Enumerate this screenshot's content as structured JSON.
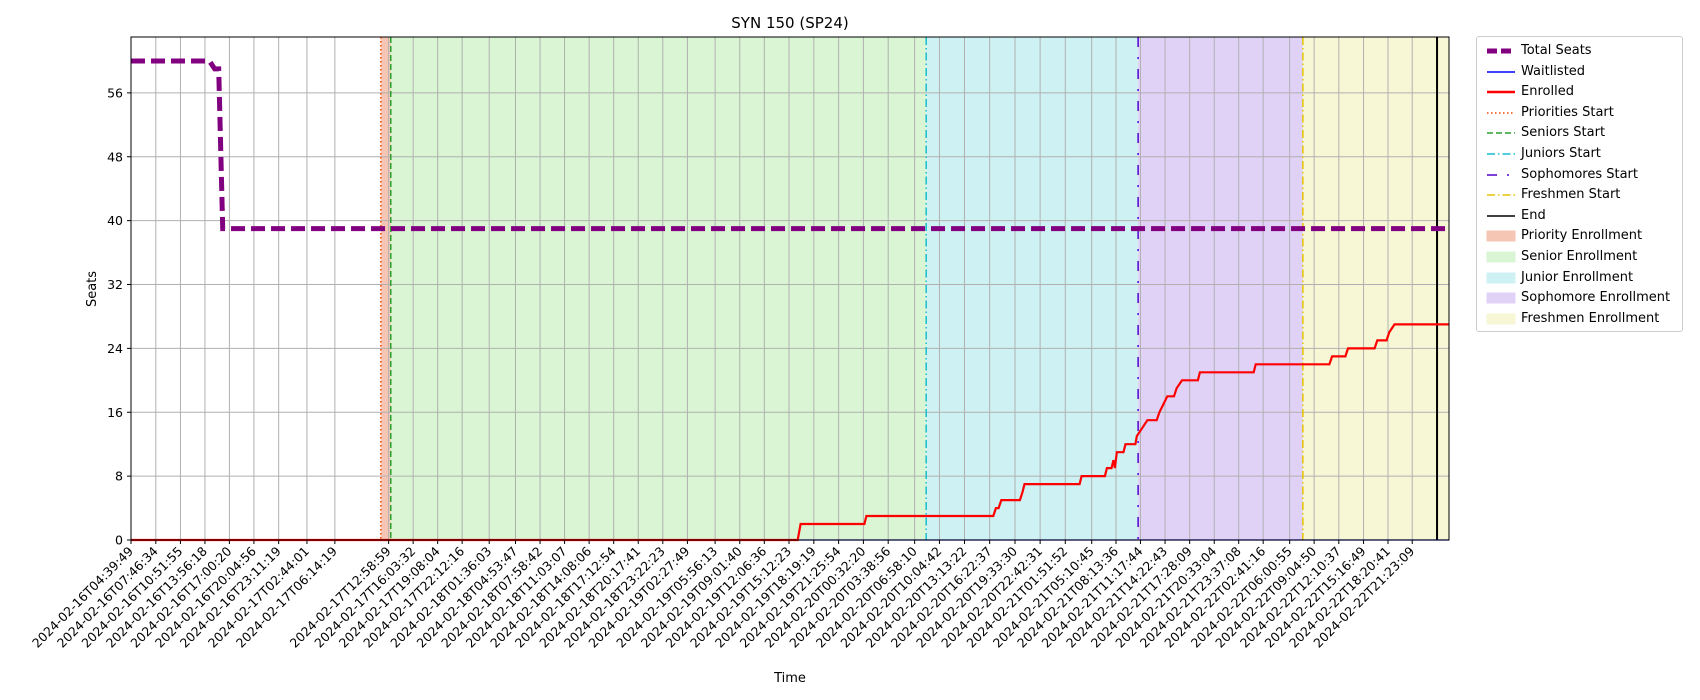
{
  "chart_data": {
    "type": "line",
    "title": "SYN 150 (SP24)",
    "xlabel": "Time",
    "ylabel": "Seats",
    "ylim": [
      0,
      63
    ],
    "yticks": [
      0,
      8,
      16,
      24,
      32,
      40,
      48,
      56
    ],
    "grid": true,
    "legend_position": "outside-right",
    "x_range": [
      "2024-02-16T04:39:49",
      "2024-02-23T02:00:00"
    ],
    "xticks": [
      "2024-02-16T04:39:49",
      "2024-02-16T07:46:34",
      "2024-02-16T10:51:55",
      "2024-02-16T13:56:18",
      "2024-02-16T17:00:20",
      "2024-02-16T20:04:56",
      "2024-02-16T23:11:19",
      "2024-02-17T02:44:01",
      "2024-02-17T06:14:19",
      "2024-02-17T12:58:59",
      "2024-02-17T16:03:32",
      "2024-02-17T19:08:04",
      "2024-02-17T22:12:16",
      "2024-02-18T01:36:03",
      "2024-02-18T04:53:47",
      "2024-02-18T07:58:42",
      "2024-02-18T11:03:07",
      "2024-02-18T14:08:06",
      "2024-02-18T17:12:54",
      "2024-02-18T20:17:41",
      "2024-02-18T23:22:23",
      "2024-02-19T02:27:49",
      "2024-02-19T05:56:13",
      "2024-02-19T09:01:40",
      "2024-02-19T12:06:36",
      "2024-02-19T15:12:23",
      "2024-02-19T18:19:19",
      "2024-02-19T21:25:54",
      "2024-02-20T00:32:20",
      "2024-02-20T03:38:56",
      "2024-02-20T06:58:10",
      "2024-02-20T10:04:42",
      "2024-02-20T13:13:22",
      "2024-02-20T16:22:37",
      "2024-02-20T19:33:30",
      "2024-02-20T22:42:31",
      "2024-02-21T01:51:52",
      "2024-02-21T05:10:45",
      "2024-02-21T08:13:36",
      "2024-02-21T11:17:44",
      "2024-02-21T14:22:43",
      "2024-02-21T17:28:09",
      "2024-02-21T20:33:04",
      "2024-02-21T23:37:08",
      "2024-02-22T02:41:16",
      "2024-02-22T06:00:55",
      "2024-02-22T09:04:50",
      "2024-02-22T12:10:37",
      "2024-02-22T15:16:49",
      "2024-02-22T18:20:41",
      "2024-02-22T21:23:09"
    ],
    "series": [
      {
        "name": "Total Seats",
        "color": "#800080",
        "style": "dashed",
        "points": [
          [
            "2024-02-16T04:39:49",
            60
          ],
          [
            "2024-02-16T14:30:00",
            60
          ],
          [
            "2024-02-16T15:10:00",
            59
          ],
          [
            "2024-02-16T15:40:00",
            59
          ],
          [
            "2024-02-16T16:10:00",
            39
          ],
          [
            "2024-02-23T02:00:00",
            39
          ]
        ]
      },
      {
        "name": "Waitlisted",
        "color": "#0000ff",
        "style": "solid",
        "points": [
          [
            "2024-02-16T04:39:49",
            0
          ],
          [
            "2024-02-23T02:00:00",
            0
          ]
        ]
      },
      {
        "name": "Enrolled",
        "color": "#ff0000",
        "style": "solid",
        "points": [
          [
            "2024-02-16T04:39:49",
            0
          ],
          [
            "2024-02-19T16:18:00",
            0
          ],
          [
            "2024-02-19T16:40:00",
            2
          ],
          [
            "2024-02-20T00:40:00",
            2
          ],
          [
            "2024-02-20T00:55:00",
            3
          ],
          [
            "2024-02-20T16:50:00",
            3
          ],
          [
            "2024-02-20T17:10:00",
            4
          ],
          [
            "2024-02-20T17:30:00",
            4
          ],
          [
            "2024-02-20T17:50:00",
            5
          ],
          [
            "2024-02-20T20:10:00",
            5
          ],
          [
            "2024-02-20T20:30:00",
            6
          ],
          [
            "2024-02-20T20:45:00",
            7
          ],
          [
            "2024-02-21T03:40:00",
            7
          ],
          [
            "2024-02-21T03:55:00",
            8
          ],
          [
            "2024-02-21T06:50:00",
            8
          ],
          [
            "2024-02-21T07:05:00",
            9
          ],
          [
            "2024-02-21T07:40:00",
            9
          ],
          [
            "2024-02-21T07:55:00",
            10
          ],
          [
            "2024-02-21T08:05:00",
            9
          ],
          [
            "2024-02-21T08:20:00",
            11
          ],
          [
            "2024-02-21T09:10:00",
            11
          ],
          [
            "2024-02-21T09:25:00",
            12
          ],
          [
            "2024-02-21T10:40:00",
            12
          ],
          [
            "2024-02-21T10:50:00",
            13
          ],
          [
            "2024-02-21T11:30:00",
            14
          ],
          [
            "2024-02-21T12:10:00",
            15
          ],
          [
            "2024-02-21T13:20:00",
            15
          ],
          [
            "2024-02-21T13:40:00",
            16
          ],
          [
            "2024-02-21T14:10:00",
            17
          ],
          [
            "2024-02-21T14:40:00",
            18
          ],
          [
            "2024-02-21T15:30:00",
            18
          ],
          [
            "2024-02-21T15:50:00",
            19
          ],
          [
            "2024-02-21T16:30:00",
            20
          ],
          [
            "2024-02-21T18:30:00",
            20
          ],
          [
            "2024-02-21T18:45:00",
            21
          ],
          [
            "2024-02-22T01:30:00",
            21
          ],
          [
            "2024-02-22T01:45:00",
            22
          ],
          [
            "2024-02-22T11:00:00",
            22
          ],
          [
            "2024-02-22T11:20:00",
            23
          ],
          [
            "2024-02-22T13:00:00",
            23
          ],
          [
            "2024-02-22T13:20:00",
            24
          ],
          [
            "2024-02-22T16:40:00",
            24
          ],
          [
            "2024-02-22T17:00:00",
            25
          ],
          [
            "2024-02-22T18:10:00",
            25
          ],
          [
            "2024-02-22T18:30:00",
            26
          ],
          [
            "2024-02-22T19:10:00",
            27
          ],
          [
            "2024-02-23T02:00:00",
            27
          ]
        ]
      }
    ],
    "vlines": [
      {
        "name": "Priorities Start",
        "x": "2024-02-17T12:00:00",
        "color": "#ff4500",
        "style": "dotted"
      },
      {
        "name": "Seniors Start",
        "x": "2024-02-17T13:15:00",
        "color": "#2ca02c",
        "style": "dashed"
      },
      {
        "name": "Juniors Start",
        "x": "2024-02-20T08:25:00",
        "color": "#17becf",
        "style": "dashdot"
      },
      {
        "name": "Sophomores Start",
        "x": "2024-02-21T11:00:00",
        "color": "#5500cc",
        "style": "loosedashdot"
      },
      {
        "name": "Freshmen Start",
        "x": "2024-02-22T07:40:00",
        "color": "#e6c200",
        "style": "dashdot"
      },
      {
        "name": "End",
        "x": "2024-02-23T00:30:00",
        "color": "#000000",
        "style": "solid"
      }
    ],
    "spans": [
      {
        "name": "Priority Enrollment",
        "start": "2024-02-17T12:00:00",
        "end": "2024-02-17T13:15:00",
        "color": "#f5c6b4"
      },
      {
        "name": "Senior Enrollment",
        "start": "2024-02-17T13:15:00",
        "end": "2024-02-20T08:25:00",
        "color": "#d9f5d3"
      },
      {
        "name": "Junior Enrollment",
        "start": "2024-02-20T08:25:00",
        "end": "2024-02-21T11:00:00",
        "color": "#cef2f3"
      },
      {
        "name": "Sophomore Enrollment",
        "start": "2024-02-21T11:00:00",
        "end": "2024-02-22T07:40:00",
        "color": "#e0d2f7"
      },
      {
        "name": "Freshmen Enrollment",
        "start": "2024-02-22T07:40:00",
        "end": "2024-02-23T02:00:00",
        "color": "#f7f7d6"
      }
    ]
  },
  "legend": {
    "items": [
      {
        "label": "Total Seats",
        "kind": "line",
        "color": "#800080",
        "style": "dashed-thick"
      },
      {
        "label": "Waitlisted",
        "kind": "line",
        "color": "#0000ff",
        "style": "solid"
      },
      {
        "label": "Enrolled",
        "kind": "line",
        "color": "#ff0000",
        "style": "solid-thick"
      },
      {
        "label": "Priorities Start",
        "kind": "line",
        "color": "#ff4500",
        "style": "dotted"
      },
      {
        "label": "Seniors Start",
        "kind": "line",
        "color": "#2ca02c",
        "style": "dashed"
      },
      {
        "label": "Juniors Start",
        "kind": "line",
        "color": "#17becf",
        "style": "dashdot"
      },
      {
        "label": "Sophomores Start",
        "kind": "line",
        "color": "#5500cc",
        "style": "loosedashdot"
      },
      {
        "label": "Freshmen Start",
        "kind": "line",
        "color": "#e6c200",
        "style": "dashdot"
      },
      {
        "label": "End",
        "kind": "line",
        "color": "#000000",
        "style": "solid"
      },
      {
        "label": "Priority Enrollment",
        "kind": "patch",
        "color": "#f5c6b4"
      },
      {
        "label": "Senior Enrollment",
        "kind": "patch",
        "color": "#d9f5d3"
      },
      {
        "label": "Junior Enrollment",
        "kind": "patch",
        "color": "#cef2f3"
      },
      {
        "label": "Sophomore Enrollment",
        "kind": "patch",
        "color": "#e0d2f7"
      },
      {
        "label": "Freshmen Enrollment",
        "kind": "patch",
        "color": "#f7f7d6"
      }
    ]
  }
}
